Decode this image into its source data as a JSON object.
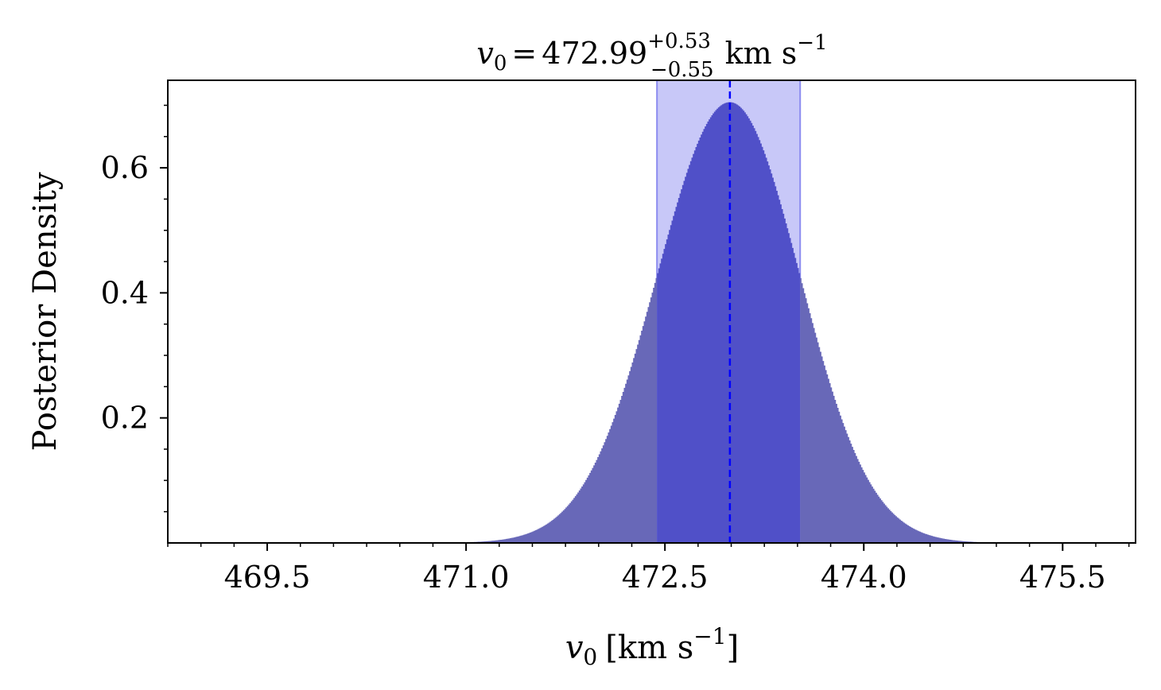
{
  "chart_data": {
    "type": "area",
    "title": {
      "symbol": "v",
      "subscript": "0",
      "equals": "=",
      "value": "472.99",
      "upper": "+0.53",
      "lower": "−0.55",
      "units": "km s",
      "units_exp": "−1"
    },
    "xlabel": {
      "symbol": "v",
      "subscript": "0",
      "open": "[",
      "units": "km s",
      "units_exp": "−1",
      "close": "]"
    },
    "ylabel": "Posterior Density",
    "xlim": [
      468.75,
      476.05
    ],
    "ylim": [
      0,
      0.74
    ],
    "xticks": [
      469.5,
      471.0,
      472.5,
      474.0,
      475.5
    ],
    "xtick_labels": [
      "469.5",
      "471.0",
      "472.5",
      "474.0",
      "475.5"
    ],
    "yticks": [
      0.2,
      0.4,
      0.6
    ],
    "ytick_labels": [
      "0.2",
      "0.4",
      "0.6"
    ],
    "distribution": {
      "median": 472.99,
      "sigma_upper": 0.53,
      "sigma_lower": 0.55,
      "peak": 0.705,
      "x_min": 469.8,
      "x_max": 475.9,
      "bin_width": 0.01
    },
    "credible_interval": [
      472.44,
      473.52
    ],
    "colors": {
      "fill": "#6868b8",
      "fill_in_interval": "#5050c8",
      "band": "#c8c8f8",
      "band_edge": "#8c8cf0",
      "median_line": "#0000ff"
    }
  }
}
